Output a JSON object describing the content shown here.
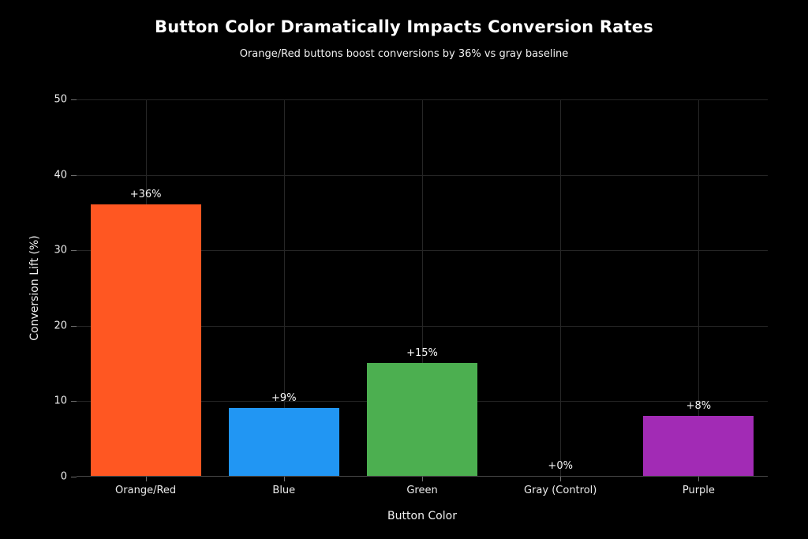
{
  "title": "Button Color Dramatically Impacts Conversion Rates",
  "subtitle": "Orange/Red buttons boost conversions by 36% vs gray baseline",
  "colors": {
    "background": "#000000",
    "title_text": "#ffffff",
    "tick_text": "#ececec",
    "grid": "#262626",
    "baseline": "#4a4a4a",
    "tick_mark": "#6f6f6f"
  },
  "chart_data": {
    "type": "bar",
    "title": "Button Color Dramatically Impacts Conversion Rates",
    "subtitle": "Orange/Red buttons boost conversions by 36% vs gray baseline",
    "categories": [
      "Orange/Red",
      "Blue",
      "Green",
      "Gray (Control)",
      "Purple"
    ],
    "values": [
      36,
      9,
      15,
      0,
      8
    ],
    "bar_labels": [
      "+36%",
      "+9%",
      "+15%",
      "+0%",
      "+8%"
    ],
    "bar_colors": [
      "#FF5722",
      "#2196F3",
      "#4CAF50",
      "#9E9E9E",
      "#A22BB5"
    ],
    "xlabel": "Button Color",
    "ylabel": "Conversion Lift (%)",
    "yticks": [
      0,
      10,
      20,
      30,
      40,
      50
    ],
    "ylim": [
      0,
      50
    ],
    "grid": true,
    "legend_position": "none",
    "bar_width_fraction": 0.8
  }
}
